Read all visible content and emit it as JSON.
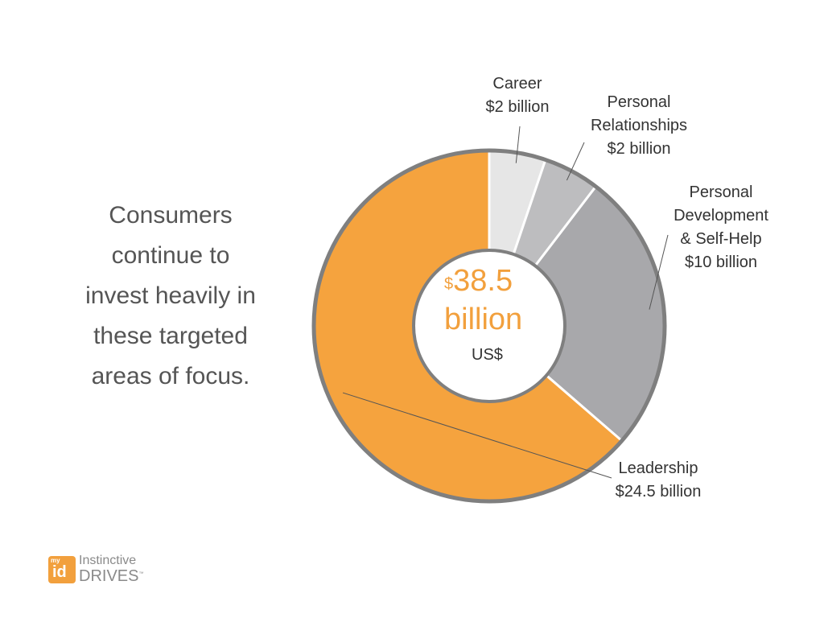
{
  "headline": [
    "Consumers",
    "continue to",
    "invest heavily in",
    "these targeted",
    "areas of focus."
  ],
  "chart_data": {
    "type": "pie",
    "donut": true,
    "unit": "US$ billion",
    "total_label": {
      "currency_symbol": "$",
      "amount": "38.5",
      "unit": "billion",
      "currency": "US$"
    },
    "slices": [
      {
        "name": "Career",
        "label": "$2 billion",
        "value": 2,
        "color": "#e6e6e6"
      },
      {
        "name": "Personal Relationships",
        "label": "$2 billion",
        "value": 2,
        "color": "#bdbdbf"
      },
      {
        "name": "Personal Development & Self-Help",
        "label": "$10 billion",
        "value": 10,
        "color": "#a8a8ab"
      },
      {
        "name": "Leadership",
        "label": "$24.5 billion",
        "value": 24.5,
        "color": "#f5a33e"
      }
    ],
    "label_lines": {
      "career": [
        "Career",
        "$2 billion"
      ],
      "relationships": [
        "Personal",
        "Relationships",
        "$2 billion"
      ],
      "development": [
        "Personal",
        "Development",
        "& Self-Help",
        "$10 billion"
      ],
      "leadership": [
        "Leadership",
        "$24.5 billion"
      ]
    }
  },
  "logo": {
    "badge_small": "my",
    "badge_large": "id",
    "line1": "Instinctive",
    "line2": "DRIVES",
    "trademark": "™"
  }
}
